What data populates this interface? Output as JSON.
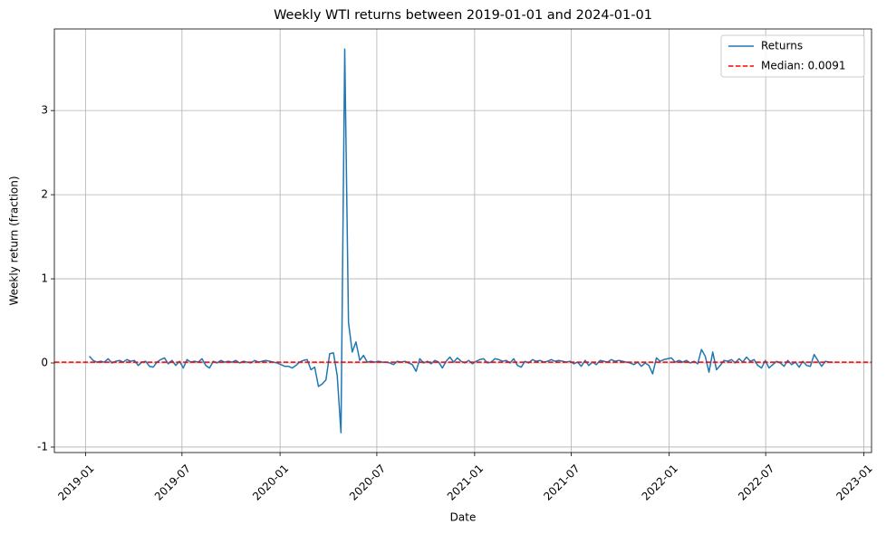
{
  "chart_data": {
    "type": "line",
    "title": "Weekly WTI returns between 2019-01-01 and 2024-01-01",
    "xlabel": "Date",
    "ylabel": "Weekly return (fraction)",
    "xlim": [
      2018.84,
      2023.04
    ],
    "ylim": [
      -1.065,
      3.97
    ],
    "xticks": [
      {
        "value": 2019.0,
        "label": "2019-01"
      },
      {
        "value": 2019.4959,
        "label": "2019-07"
      },
      {
        "value": 2020.0,
        "label": "2020-01"
      },
      {
        "value": 2020.4973,
        "label": "2020-07"
      },
      {
        "value": 2021.0,
        "label": "2021-01"
      },
      {
        "value": 2021.4959,
        "label": "2021-07"
      },
      {
        "value": 2022.0,
        "label": "2022-01"
      },
      {
        "value": 2022.4959,
        "label": "2022-07"
      },
      {
        "value": 2023.0,
        "label": "2023-01"
      }
    ],
    "yticks": [
      -1,
      0,
      1,
      2,
      3
    ],
    "grid": true,
    "legend": "upper right",
    "median": {
      "value": 0.0091,
      "label": "Median: 0.0091",
      "color": "#ff0000"
    },
    "x": [
      2019.02,
      2019.0393,
      2019.0586,
      2019.0779,
      2019.0972,
      2019.1165,
      2019.1358,
      2019.1551,
      2019.1744,
      2019.1937,
      2019.213,
      2019.2323,
      2019.2516,
      2019.2709,
      2019.2902,
      2019.3095,
      2019.3288,
      2019.3481,
      2019.3674,
      2019.3867,
      2019.406,
      2019.4253,
      2019.4446,
      2019.4639,
      2019.4832,
      2019.5025,
      2019.5218,
      2019.5411,
      2019.5604,
      2019.5797,
      2019.599,
      2019.6183,
      2019.6376,
      2019.6569,
      2019.6762,
      2019.6955,
      2019.7148,
      2019.7341,
      2019.7534,
      2019.7727,
      2019.792,
      2019.8113,
      2019.8306,
      2019.8499,
      2019.8692,
      2019.8885,
      2019.9078,
      2019.9271,
      2019.9464,
      2019.9657,
      2019.985,
      2020.0043,
      2020.0236,
      2020.0429,
      2020.0622,
      2020.0815,
      2020.1008,
      2020.1201,
      2020.1394,
      2020.1587,
      2020.178,
      2020.1973,
      2020.2166,
      2020.2359,
      2020.2552,
      2020.2745,
      2020.2938,
      2020.3131,
      2020.3324,
      2020.3517,
      2020.371,
      2020.3903,
      2020.4096,
      2020.4289,
      2020.4482,
      2020.4675,
      2020.4868,
      2020.5061,
      2020.5254,
      2020.5447,
      2020.564,
      2020.5833,
      2020.6026,
      2020.6219,
      2020.6412,
      2020.6605,
      2020.6798,
      2020.6991,
      2020.7184,
      2020.7377,
      2020.757,
      2020.7763,
      2020.7956,
      2020.8149,
      2020.8342,
      2020.8535,
      2020.8728,
      2020.8921,
      2020.9114,
      2020.9307,
      2020.95,
      2020.9693,
      2020.9886,
      2021.0079,
      2021.0272,
      2021.0465,
      2021.0658,
      2021.0851,
      2021.1044,
      2021.1237,
      2021.143,
      2021.1623,
      2021.1816,
      2021.2009,
      2021.2202,
      2021.2395,
      2021.2588,
      2021.2781,
      2021.2974,
      2021.3167,
      2021.336,
      2021.3553,
      2021.3746,
      2021.3939,
      2021.4132,
      2021.4325,
      2021.4518,
      2021.4711,
      2021.4904,
      2021.5097,
      2021.529,
      2021.5483,
      2021.5676,
      2021.5869,
      2021.6062,
      2021.6255,
      2021.6448,
      2021.6641,
      2021.6834,
      2021.7027,
      2021.722,
      2021.7413,
      2021.7606,
      2021.7799,
      2021.7992,
      2021.8185,
      2021.8378,
      2021.8571,
      2021.8764,
      2021.8957,
      2021.915,
      2021.9343,
      2021.9536,
      2021.9729,
      2021.9922,
      2022.0115,
      2022.0308,
      2022.0501,
      2022.0694,
      2022.0887,
      2022.108,
      2022.1273,
      2022.1466,
      2022.1659,
      2022.1852,
      2022.2045,
      2022.2238,
      2022.2431,
      2022.2624,
      2022.2817,
      2022.301,
      2022.3203,
      2022.3396,
      2022.3589,
      2022.3782,
      2022.3975,
      2022.4168,
      2022.4361,
      2022.4554,
      2022.4747,
      2022.494,
      2022.5133,
      2022.5326,
      2022.5519,
      2022.5712,
      2022.5905,
      2022.6098,
      2022.6291,
      2022.6484,
      2022.6677,
      2022.687,
      2022.7063,
      2022.7256,
      2022.7449,
      2022.7642,
      2022.7835,
      2022.8028,
      2022.8221,
      2022.8414
    ],
    "series": [
      {
        "name": "Returns",
        "color": "#1f77b4",
        "values": [
          0.08,
          0.03,
          0.01,
          0.02,
          0.01,
          0.05,
          0.0,
          0.02,
          0.03,
          0.01,
          0.04,
          0.02,
          0.03,
          -0.03,
          0.01,
          0.02,
          -0.04,
          -0.05,
          0.01,
          0.04,
          0.06,
          -0.01,
          0.03,
          -0.03,
          0.02,
          -0.06,
          0.04,
          0.01,
          0.02,
          0.01,
          0.05,
          -0.03,
          -0.06,
          0.02,
          0.0,
          0.03,
          0.01,
          0.02,
          0.01,
          0.03,
          0.0,
          0.02,
          0.01,
          0.0,
          0.03,
          0.01,
          0.02,
          0.03,
          0.02,
          0.01,
          0.0,
          -0.02,
          -0.04,
          -0.04,
          -0.06,
          -0.03,
          0.01,
          0.03,
          0.04,
          -0.08,
          -0.05,
          -0.28,
          -0.25,
          -0.2,
          0.11,
          0.12,
          -0.15,
          -0.83,
          3.73,
          0.48,
          0.13,
          0.25,
          0.03,
          0.09,
          0.01,
          0.02,
          0.01,
          0.02,
          0.01,
          0.01,
          0.0,
          -0.02,
          0.02,
          0.01,
          0.02,
          0.0,
          -0.02,
          -0.1,
          0.05,
          0.0,
          0.02,
          -0.01,
          0.03,
          0.01,
          -0.06,
          0.02,
          0.07,
          0.01,
          0.06,
          0.02,
          0.0,
          0.03,
          -0.01,
          0.02,
          0.04,
          0.05,
          0.0,
          0.01,
          0.05,
          0.04,
          0.02,
          0.03,
          0.0,
          0.05,
          -0.03,
          -0.05,
          0.02,
          0.0,
          0.04,
          0.02,
          0.03,
          0.01,
          0.02,
          0.04,
          0.02,
          0.03,
          0.02,
          0.01,
          0.02,
          -0.01,
          0.01,
          -0.04,
          0.03,
          -0.03,
          0.01,
          -0.02,
          0.03,
          0.02,
          0.01,
          0.04,
          0.02,
          0.03,
          0.02,
          0.01,
          0.0,
          -0.02,
          0.01,
          -0.04,
          0.0,
          -0.03,
          -0.13,
          0.06,
          0.02,
          0.04,
          0.05,
          0.06,
          0.01,
          0.03,
          0.01,
          0.03,
          0.0,
          0.02,
          -0.01,
          0.16,
          0.08,
          -0.11,
          0.13,
          -0.08,
          -0.03,
          0.03,
          0.02,
          0.04,
          0.0,
          0.05,
          0.01,
          0.07,
          0.02,
          0.04,
          -0.03,
          -0.06,
          0.03,
          -0.06,
          -0.02,
          0.02,
          0.0,
          -0.04,
          0.03,
          -0.02,
          0.01,
          -0.05,
          0.02,
          -0.03,
          -0.04,
          0.1,
          0.03,
          -0.04,
          0.02,
          0.01,
          0.01
        ]
      }
    ]
  }
}
